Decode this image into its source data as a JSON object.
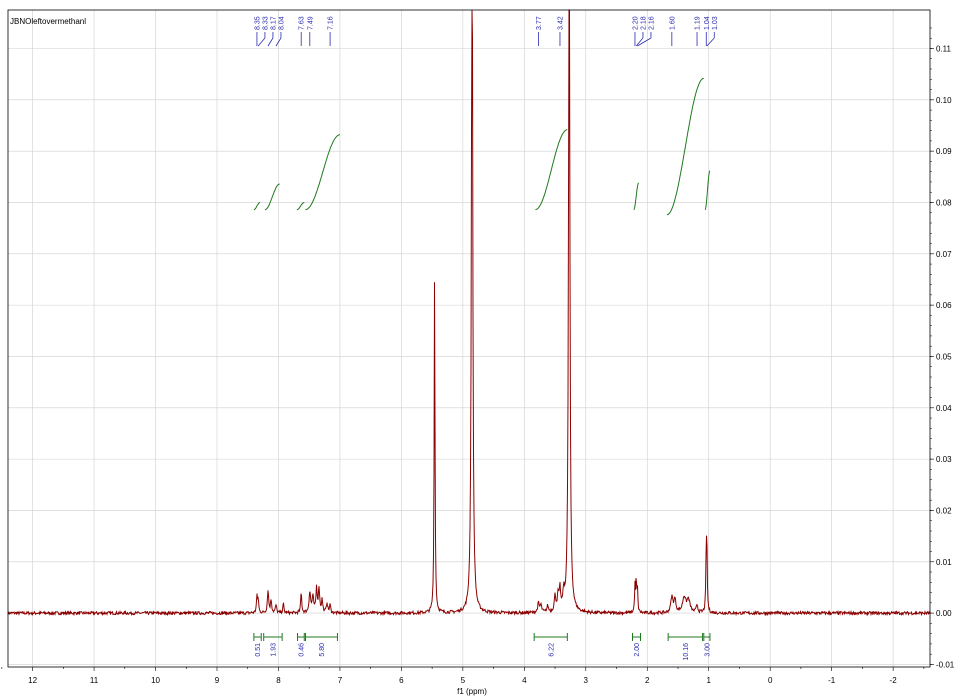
{
  "chart_data": {
    "type": "line",
    "title": "JBNOleftovermethanl",
    "xlabel": "f1 (ppm)",
    "ylabel": "",
    "xlim": [
      12.4,
      -2.6
    ],
    "x_reversed": true,
    "ylim": [
      -0.0105,
      0.1175
    ],
    "grid": true,
    "x_ticks": [
      "12",
      "11",
      "10",
      "9",
      "8",
      "7",
      "6",
      "5",
      "4",
      "3",
      "2",
      "1",
      "0",
      "-1",
      "-2"
    ],
    "y_ticks": [
      "-0.01",
      "0.00",
      "0.01",
      "0.02",
      "0.03",
      "0.04",
      "0.05",
      "0.06",
      "0.07",
      "0.08",
      "0.09",
      "0.10",
      "0.11"
    ],
    "peak_labels": [
      "8.35",
      "8.33",
      "8.17",
      "8.04",
      "7.63",
      "7.49",
      "7.16",
      "3.77",
      "3.42",
      "2.20",
      "2.18",
      "2.16",
      "1.60",
      "1.19",
      "1.04",
      "1.03"
    ],
    "integrals": [
      {
        "from": 8.4,
        "to": 8.28,
        "value": "0.51"
      },
      {
        "from": 8.24,
        "to": 7.94,
        "value": "1.93"
      },
      {
        "from": 7.69,
        "to": 7.58,
        "value": "0.46"
      },
      {
        "from": 7.56,
        "to": 7.04,
        "value": "5.80"
      },
      {
        "from": 3.84,
        "to": 3.3,
        "value": "6.22"
      },
      {
        "from": 2.24,
        "to": 2.11,
        "value": "2.00"
      },
      {
        "from": 1.66,
        "to": 1.1,
        "value": "10.16"
      },
      {
        "from": 1.08,
        "to": 0.98,
        "value": "3.00"
      }
    ],
    "peaks": [
      {
        "x": 8.35,
        "h": 0.003,
        "w": 0.01
      },
      {
        "x": 8.33,
        "h": 0.0025,
        "w": 0.01
      },
      {
        "x": 8.17,
        "h": 0.0045,
        "w": 0.012
      },
      {
        "x": 8.12,
        "h": 0.0025,
        "w": 0.012
      },
      {
        "x": 8.04,
        "h": 0.0015,
        "w": 0.012
      },
      {
        "x": 7.92,
        "h": 0.0018,
        "w": 0.01
      },
      {
        "x": 7.63,
        "h": 0.004,
        "w": 0.01
      },
      {
        "x": 7.49,
        "h": 0.004,
        "w": 0.015
      },
      {
        "x": 7.44,
        "h": 0.003,
        "w": 0.015
      },
      {
        "x": 7.38,
        "h": 0.0048,
        "w": 0.012
      },
      {
        "x": 7.34,
        "h": 0.0048,
        "w": 0.012
      },
      {
        "x": 7.29,
        "h": 0.0025,
        "w": 0.012
      },
      {
        "x": 7.21,
        "h": 0.002,
        "w": 0.012
      },
      {
        "x": 7.16,
        "h": 0.0015,
        "w": 0.012
      },
      {
        "x": 5.46,
        "h": 0.066,
        "w": 0.008
      },
      {
        "x": 4.85,
        "h": 0.15,
        "w": 0.012
      },
      {
        "x": 3.77,
        "h": 0.0018,
        "w": 0.015
      },
      {
        "x": 3.73,
        "h": 0.0014,
        "w": 0.015
      },
      {
        "x": 3.62,
        "h": 0.0012,
        "w": 0.015
      },
      {
        "x": 3.5,
        "h": 0.003,
        "w": 0.015
      },
      {
        "x": 3.45,
        "h": 0.003,
        "w": 0.015
      },
      {
        "x": 3.42,
        "h": 0.004,
        "w": 0.012
      },
      {
        "x": 3.36,
        "h": 0.003,
        "w": 0.015
      },
      {
        "x": 3.27,
        "h": 0.15,
        "w": 0.012
      },
      {
        "x": 2.2,
        "h": 0.005,
        "w": 0.008
      },
      {
        "x": 2.18,
        "h": 0.006,
        "w": 0.008
      },
      {
        "x": 2.16,
        "h": 0.0045,
        "w": 0.008
      },
      {
        "x": 1.6,
        "h": 0.003,
        "w": 0.02
      },
      {
        "x": 1.55,
        "h": 0.0025,
        "w": 0.02
      },
      {
        "x": 1.4,
        "h": 0.003,
        "w": 0.03
      },
      {
        "x": 1.33,
        "h": 0.0025,
        "w": 0.03
      },
      {
        "x": 1.19,
        "h": 0.0015,
        "w": 0.015
      },
      {
        "x": 1.04,
        "h": 0.011,
        "w": 0.008
      },
      {
        "x": 1.03,
        "h": 0.01,
        "w": 0.008
      }
    ],
    "integral_curves": [
      {
        "from": 8.4,
        "to": 8.3,
        "y0": 0.0786,
        "y1": 0.08
      },
      {
        "from": 8.22,
        "to": 7.98,
        "y0": 0.0786,
        "y1": 0.0836
      },
      {
        "from": 7.7,
        "to": 7.58,
        "y0": 0.0786,
        "y1": 0.08
      },
      {
        "from": 7.56,
        "to": 7.0,
        "y0": 0.0786,
        "y1": 0.0932
      },
      {
        "from": 3.82,
        "to": 3.3,
        "y0": 0.0786,
        "y1": 0.0942
      },
      {
        "from": 2.22,
        "to": 2.14,
        "y0": 0.0786,
        "y1": 0.0838
      },
      {
        "from": 1.68,
        "to": 1.08,
        "y0": 0.0776,
        "y1": 0.1042
      },
      {
        "from": 1.06,
        "to": 0.98,
        "y0": 0.0786,
        "y1": 0.0862
      }
    ],
    "colors": {
      "spectrum": "#8b0000",
      "integral": "#1f7a1f",
      "labels": "#2b2bb0",
      "grid": "#cfcfcf"
    }
  }
}
